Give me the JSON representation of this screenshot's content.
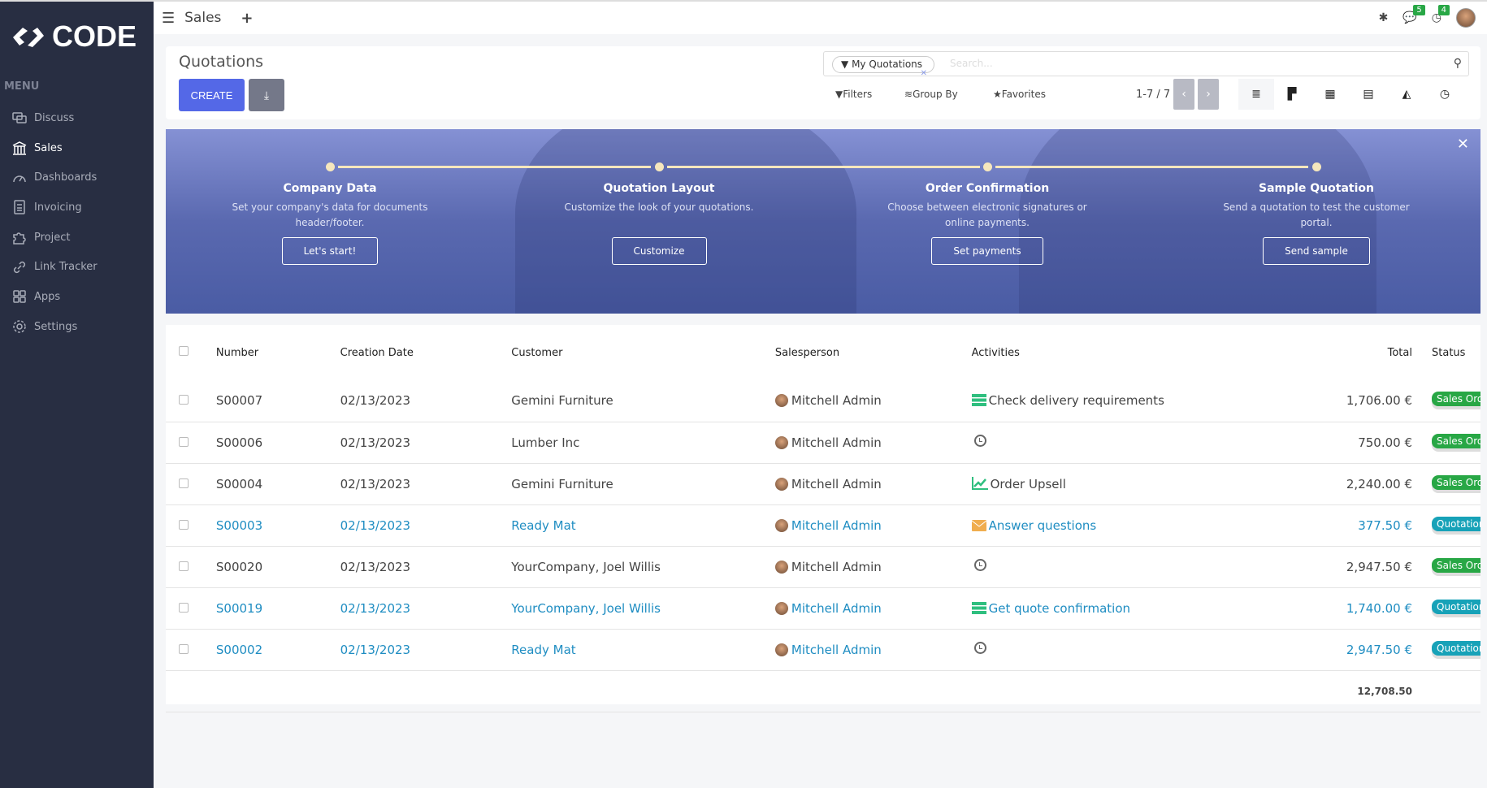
{
  "brand": {
    "name": "CODE"
  },
  "sidebar": {
    "menu_label": "MENU",
    "items": [
      {
        "label": "Discuss",
        "icon": "chat-icon"
      },
      {
        "label": "Sales",
        "icon": "bank-icon",
        "active": true
      },
      {
        "label": "Dashboards",
        "icon": "gauge-icon"
      },
      {
        "label": "Invoicing",
        "icon": "invoice-icon"
      },
      {
        "label": "Project",
        "icon": "puzzle-icon"
      },
      {
        "label": "Link Tracker",
        "icon": "link-icon"
      },
      {
        "label": "Apps",
        "icon": "grid-icon"
      },
      {
        "label": "Settings",
        "icon": "gear-icon"
      }
    ]
  },
  "topbar": {
    "app": "Sales",
    "messages_count": "5",
    "activities_count": "4"
  },
  "control": {
    "title": "Quotations",
    "create": "CREATE",
    "facet": "My Quotations",
    "search_placeholder": "Search...",
    "filters": "Filters",
    "group_by": "Group By",
    "favorites": "Favorites",
    "pager": "1-7 / 7"
  },
  "banner": {
    "steps": [
      {
        "title": "Company Data",
        "desc": "Set your company's data for documents header/footer.",
        "button": "Let's start!"
      },
      {
        "title": "Quotation Layout",
        "desc": "Customize the look of your quotations.",
        "button": "Customize"
      },
      {
        "title": "Order Confirmation",
        "desc": "Choose between electronic signatures or online payments.",
        "button": "Set payments"
      },
      {
        "title": "Sample Quotation",
        "desc": "Send a quotation to test the customer portal.",
        "button": "Send sample"
      }
    ]
  },
  "table": {
    "columns": [
      "Number",
      "Creation Date",
      "Customer",
      "Salesperson",
      "Activities",
      "Total",
      "Status"
    ],
    "rows": [
      {
        "number": "S00007",
        "date": "02/13/2023",
        "customer": "Gemini Furniture",
        "salesperson": "Mitchell Admin",
        "activity": "Check delivery requirements",
        "activity_icon": "tasks-icon",
        "total": "1,706.00 €",
        "status": "Sales Order",
        "highlight": false
      },
      {
        "number": "S00006",
        "date": "02/13/2023",
        "customer": "Lumber Inc",
        "salesperson": "Mitchell Admin",
        "activity": "",
        "activity_icon": "clock-icon",
        "total": "750.00 €",
        "status": "Sales Order",
        "highlight": false
      },
      {
        "number": "S00004",
        "date": "02/13/2023",
        "customer": "Gemini Furniture",
        "salesperson": "Mitchell Admin",
        "activity": "Order Upsell",
        "activity_icon": "chart-icon",
        "total": "2,240.00 €",
        "status": "Sales Order",
        "highlight": false
      },
      {
        "number": "S00003",
        "date": "02/13/2023",
        "customer": "Ready Mat",
        "salesperson": "Mitchell Admin",
        "activity": "Answer questions",
        "activity_icon": "envelope-icon",
        "total": "377.50 €",
        "status": "Quotation",
        "highlight": true
      },
      {
        "number": "S00020",
        "date": "02/13/2023",
        "customer": "YourCompany, Joel Willis",
        "salesperson": "Mitchell Admin",
        "activity": "",
        "activity_icon": "clock-icon",
        "total": "2,947.50 €",
        "status": "Sales Order",
        "highlight": false
      },
      {
        "number": "S00019",
        "date": "02/13/2023",
        "customer": "YourCompany, Joel Willis",
        "salesperson": "Mitchell Admin",
        "activity": "Get quote confirmation",
        "activity_icon": "tasks-icon",
        "total": "1,740.00 €",
        "status": "Quotation",
        "highlight": true
      },
      {
        "number": "S00002",
        "date": "02/13/2023",
        "customer": "Ready Mat",
        "salesperson": "Mitchell Admin",
        "activity": "",
        "activity_icon": "clock-icon",
        "total": "2,947.50 €",
        "status": "Quotation",
        "highlight": true
      }
    ],
    "sum_total": "12,708.50"
  },
  "colors": {
    "sidebar": "#282e42",
    "primary": "#5468e7",
    "sales_order": "#28a745",
    "quotation": "#17a2b8",
    "link": "#1f8dc2"
  }
}
